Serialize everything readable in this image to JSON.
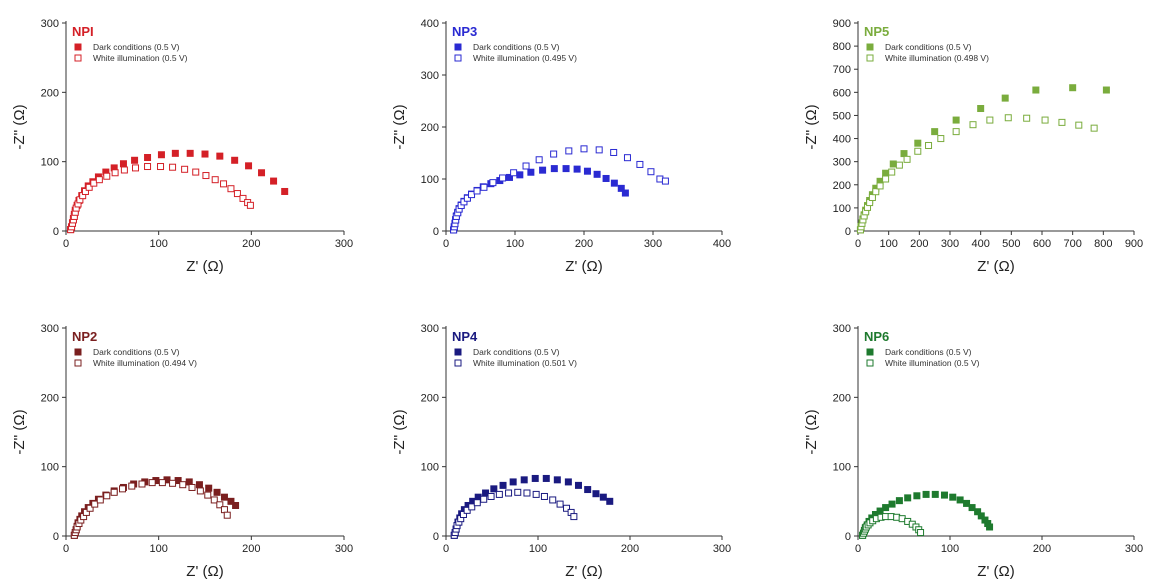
{
  "figure": {
    "background": "#ffffff"
  },
  "chart_data": [
    {
      "type": "scatter",
      "title": "NPI",
      "color": "#d42027",
      "xlabel": "Z' (Ω)",
      "ylabel": "-Z'' (Ω)",
      "xlim": [
        0,
        300
      ],
      "ylim": [
        0,
        300
      ],
      "xticks": [
        0,
        100,
        200,
        300
      ],
      "yticks": [
        0,
        100,
        200,
        300
      ],
      "grid": false,
      "legend_position": "top-left",
      "series": [
        {
          "name": "Dark conditions (0.5 V)",
          "marker": "filled-square",
          "x": [
            5,
            6,
            7,
            8,
            9,
            10,
            12,
            14,
            17,
            20,
            24,
            29,
            35,
            43,
            52,
            62,
            74,
            88,
            103,
            118,
            134,
            150,
            166,
            182,
            197,
            211,
            224,
            236
          ],
          "y": [
            2,
            6,
            12,
            18,
            24,
            30,
            37,
            44,
            51,
            58,
            65,
            71,
            78,
            85,
            91,
            97,
            102,
            106,
            110,
            112,
            112,
            111,
            108,
            102,
            94,
            84,
            72,
            57
          ]
        },
        {
          "name": "White illumination (0.5 V)",
          "marker": "open-square",
          "x": [
            5,
            6,
            7,
            8,
            9,
            10,
            11,
            13,
            15,
            18,
            21,
            25,
            30,
            36,
            44,
            53,
            63,
            75,
            88,
            102,
            115,
            128,
            140,
            151,
            161,
            170,
            178,
            185,
            191,
            196,
            199
          ],
          "y": [
            2,
            6,
            11,
            16,
            21,
            27,
            33,
            39,
            45,
            51,
            57,
            63,
            69,
            74,
            79,
            84,
            88,
            91,
            93,
            93,
            92,
            89,
            85,
            80,
            74,
            68,
            61,
            54,
            47,
            41,
            37
          ]
        }
      ]
    },
    {
      "type": "scatter",
      "title": "NP3",
      "color": "#2a2ad2",
      "xlabel": "Z' (Ω)",
      "ylabel": "-Z'' (Ω)",
      "xlim": [
        0,
        400
      ],
      "ylim": [
        0,
        400
      ],
      "xticks": [
        0,
        100,
        200,
        300,
        400
      ],
      "yticks": [
        0,
        100,
        200,
        300,
        400
      ],
      "grid": false,
      "legend_position": "top-left",
      "series": [
        {
          "name": "Dark conditions (0.5 V)",
          "marker": "filled-square",
          "x": [
            11,
            12,
            13,
            14,
            15,
            17,
            19,
            22,
            26,
            31,
            37,
            45,
            54,
            65,
            78,
            92,
            107,
            123,
            140,
            157,
            174,
            190,
            205,
            219,
            232,
            244,
            254,
            260
          ],
          "y": [
            2,
            8,
            15,
            22,
            29,
            36,
            43,
            50,
            57,
            64,
            71,
            78,
            85,
            91,
            97,
            103,
            108,
            113,
            117,
            120,
            120,
            119,
            115,
            109,
            101,
            92,
            82,
            73
          ]
        },
        {
          "name": "White illumination (0.495 V)",
          "marker": "open-square",
          "x": [
            11,
            12,
            13,
            14,
            15,
            17,
            19,
            22,
            26,
            31,
            37,
            45,
            55,
            68,
            82,
            98,
            116,
            135,
            156,
            178,
            200,
            222,
            243,
            263,
            281,
            297,
            310,
            318
          ],
          "y": [
            2,
            8,
            14,
            21,
            28,
            35,
            42,
            49,
            56,
            63,
            70,
            77,
            84,
            93,
            102,
            112,
            125,
            137,
            148,
            154,
            158,
            156,
            151,
            141,
            128,
            114,
            100,
            96
          ]
        }
      ]
    },
    {
      "type": "scatter",
      "title": "NP5",
      "color": "#7aac3d",
      "xlabel": "Z' (Ω)",
      "ylabel": "-Z'' (Ω)",
      "xlim": [
        0,
        900
      ],
      "ylim": [
        0,
        900
      ],
      "xticks": [
        0,
        100,
        200,
        300,
        400,
        500,
        600,
        700,
        800,
        900
      ],
      "yticks": [
        0,
        100,
        200,
        300,
        400,
        500,
        600,
        700,
        800,
        900
      ],
      "grid": false,
      "legend_position": "top-left",
      "series": [
        {
          "name": "Dark conditions (0.5 V)",
          "marker": "filled-square",
          "x": [
            8,
            10,
            13,
            16,
            20,
            25,
            31,
            38,
            47,
            58,
            72,
            90,
            115,
            150,
            195,
            250,
            320,
            400,
            480,
            580,
            700,
            810
          ],
          "y": [
            5,
            20,
            35,
            52,
            70,
            90,
            110,
            132,
            157,
            185,
            215,
            250,
            290,
            335,
            380,
            430,
            480,
            530,
            575,
            610,
            620,
            610
          ]
        },
        {
          "name": "White illumination (0.498 V)",
          "marker": "open-square",
          "x": [
            8,
            10,
            13,
            16,
            20,
            25,
            31,
            38,
            47,
            58,
            72,
            90,
            110,
            135,
            160,
            195,
            230,
            270,
            320,
            375,
            430,
            490,
            550,
            610,
            665,
            720,
            770
          ],
          "y": [
            5,
            18,
            33,
            48,
            65,
            83,
            102,
            123,
            145,
            170,
            195,
            225,
            255,
            285,
            310,
            345,
            370,
            400,
            430,
            460,
            480,
            490,
            488,
            480,
            470,
            458,
            445
          ]
        }
      ]
    },
    {
      "type": "scatter",
      "title": "NP2",
      "color": "#7a1f1f",
      "xlabel": "Z' (Ω)",
      "ylabel": "-Z'' (Ω)",
      "xlim": [
        0,
        300
      ],
      "ylim": [
        0,
        300
      ],
      "xticks": [
        0,
        100,
        200,
        300
      ],
      "yticks": [
        0,
        100,
        200,
        300
      ],
      "grid": false,
      "legend_position": "top-left",
      "series": [
        {
          "name": "Dark conditions (0.5 V)",
          "marker": "filled-square",
          "x": [
            9,
            10,
            11,
            12,
            13,
            15,
            17,
            20,
            24,
            29,
            35,
            43,
            52,
            62,
            73,
            85,
            97,
            109,
            121,
            133,
            144,
            154,
            163,
            171,
            178,
            183
          ],
          "y": [
            1,
            5,
            9,
            14,
            19,
            24,
            29,
            35,
            41,
            47,
            53,
            59,
            65,
            70,
            75,
            78,
            80,
            81,
            80,
            78,
            74,
            69,
            63,
            56,
            50,
            44
          ]
        },
        {
          "name": "White illumination (0.494 V)",
          "marker": "open-square",
          "x": [
            9,
            10,
            11,
            12,
            14,
            16,
            19,
            22,
            26,
            31,
            37,
            44,
            52,
            61,
            71,
            82,
            93,
            104,
            115,
            126,
            136,
            145,
            153,
            160,
            166,
            171,
            174
          ],
          "y": [
            1,
            5,
            9,
            13,
            18,
            23,
            28,
            34,
            40,
            46,
            52,
            58,
            63,
            68,
            72,
            75,
            77,
            77,
            76,
            74,
            70,
            65,
            59,
            52,
            45,
            38,
            30
          ]
        }
      ]
    },
    {
      "type": "scatter",
      "title": "NP4",
      "color": "#1a1a80",
      "xlabel": "Z' (Ω)",
      "ylabel": "-Z'' (Ω)",
      "xlim": [
        0,
        300
      ],
      "ylim": [
        0,
        300
      ],
      "xticks": [
        0,
        100,
        200,
        300
      ],
      "yticks": [
        0,
        100,
        200,
        300
      ],
      "grid": false,
      "legend_position": "top-left",
      "series": [
        {
          "name": "Dark conditions (0.5 V)",
          "marker": "filled-square",
          "x": [
            9,
            10,
            11,
            12,
            13,
            15,
            17,
            20,
            24,
            29,
            35,
            43,
            52,
            62,
            73,
            85,
            97,
            109,
            121,
            133,
            144,
            154,
            163,
            171,
            178
          ],
          "y": [
            1,
            5,
            10,
            15,
            20,
            26,
            32,
            38,
            44,
            50,
            56,
            62,
            68,
            73,
            78,
            81,
            83,
            83,
            81,
            78,
            73,
            67,
            61,
            56,
            50
          ]
        },
        {
          "name": "White illumination (0.501 V)",
          "marker": "open-square",
          "x": [
            9,
            10,
            11,
            12,
            14,
            16,
            19,
            23,
            28,
            34,
            41,
            49,
            58,
            68,
            78,
            88,
            98,
            107,
            116,
            124,
            131,
            136,
            139
          ],
          "y": [
            1,
            5,
            10,
            15,
            20,
            25,
            31,
            37,
            42,
            48,
            53,
            57,
            60,
            62,
            63,
            62,
            60,
            57,
            52,
            46,
            40,
            34,
            28
          ]
        }
      ]
    },
    {
      "type": "scatter",
      "title": "NP6",
      "color": "#1e7a2e",
      "xlabel": "Z' (Ω)",
      "ylabel": "-Z'' (Ω)",
      "xlim": [
        0,
        300
      ],
      "ylim": [
        0,
        300
      ],
      "xticks": [
        0,
        100,
        200,
        300
      ],
      "yticks": [
        0,
        100,
        200,
        300
      ],
      "grid": false,
      "legend_position": "top-left",
      "series": [
        {
          "name": "Dark conditions (0.5 V)",
          "marker": "filled-square",
          "x": [
            5,
            6,
            7,
            8,
            10,
            12,
            15,
            19,
            24,
            30,
            37,
            45,
            54,
            64,
            74,
            84,
            94,
            103,
            111,
            118,
            124,
            130,
            134,
            138,
            141,
            143
          ],
          "y": [
            1,
            4,
            8,
            12,
            16,
            21,
            26,
            31,
            36,
            41,
            46,
            51,
            55,
            58,
            60,
            60,
            59,
            56,
            52,
            47,
            41,
            35,
            29,
            23,
            18,
            13
          ]
        },
        {
          "name": "White illumination (0.5 V)",
          "marker": "open-square",
          "x": [
            5,
            6,
            7,
            8,
            9,
            11,
            13,
            16,
            20,
            25,
            30,
            36,
            42,
            48,
            54,
            59,
            63,
            66,
            68
          ],
          "y": [
            1,
            4,
            7,
            10,
            13,
            16,
            19,
            22,
            25,
            27,
            28,
            28,
            27,
            25,
            21,
            17,
            13,
            9,
            5
          ]
        }
      ]
    }
  ]
}
